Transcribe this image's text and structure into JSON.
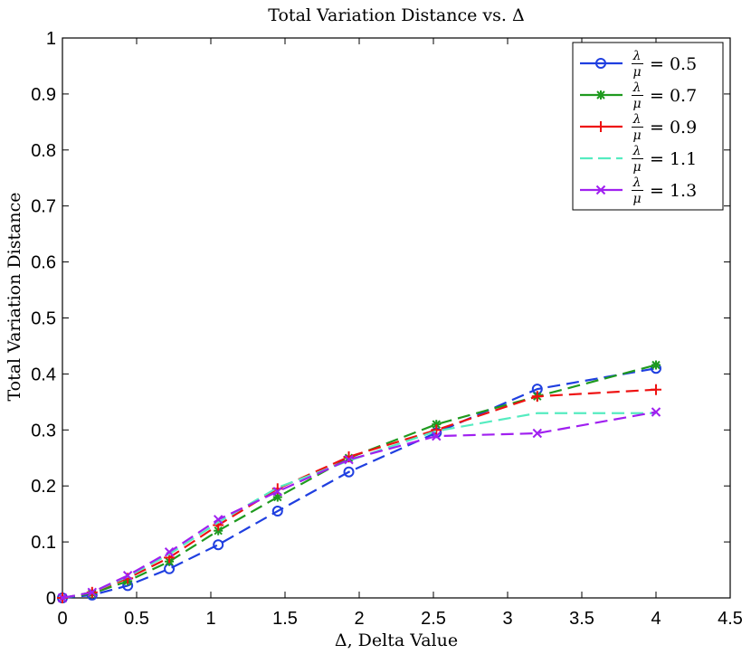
{
  "chart_data": {
    "type": "line",
    "title": "Total Variation Distance vs. Δ",
    "xlabel": "Δ, Delta Value",
    "ylabel": "Total Variation Distance",
    "xlim": [
      0,
      4.5
    ],
    "ylim": [
      0,
      1
    ],
    "xticks": [
      0,
      0.5,
      1,
      1.5,
      2,
      2.5,
      3,
      3.5,
      4,
      4.5
    ],
    "xtick_labels": [
      "0",
      "0.5",
      "1",
      "1.5",
      "2",
      "2.5",
      "3",
      "3.5",
      "4",
      "4.5"
    ],
    "yticks": [
      0,
      0.1,
      0.2,
      0.3,
      0.4,
      0.5,
      0.6,
      0.7,
      0.8,
      0.9,
      1
    ],
    "ytick_labels": [
      "0",
      "0.1",
      "0.2",
      "0.3",
      "0.4",
      "0.5",
      "0.6",
      "0.7",
      "0.8",
      "0.9",
      "1"
    ],
    "grid": false,
    "legend_position": "top-right",
    "x": [
      0,
      0.2,
      0.44,
      0.72,
      1.05,
      1.45,
      1.93,
      2.52,
      3.2,
      4.0
    ],
    "series": [
      {
        "name": "λ/μ = 0.5",
        "ratio": "0.5",
        "color": "#1f3fe0",
        "marker": "circle",
        "values": [
          0,
          0.005,
          0.022,
          0.052,
          0.095,
          0.155,
          0.225,
          0.295,
          0.373,
          0.41
        ]
      },
      {
        "name": "λ/μ = 0.7",
        "ratio": "0.7",
        "color": "#1f9a1f",
        "marker": "asterisk",
        "values": [
          0,
          0.008,
          0.03,
          0.065,
          0.12,
          0.18,
          0.25,
          0.31,
          0.36,
          0.416
        ]
      },
      {
        "name": "λ/μ = 0.9",
        "ratio": "0.9",
        "color": "#ee1111",
        "marker": "plus",
        "values": [
          0,
          0.01,
          0.035,
          0.072,
          0.13,
          0.195,
          0.252,
          0.3,
          0.36,
          0.372
        ]
      },
      {
        "name": "λ/μ = 1.1",
        "ratio": "1.1",
        "color": "#55ecc0",
        "marker": "none",
        "values": [
          0,
          0.01,
          0.038,
          0.078,
          0.135,
          0.197,
          0.245,
          0.298,
          0.33,
          0.33
        ]
      },
      {
        "name": "λ/μ = 1.3",
        "ratio": "1.3",
        "color": "#a020f0",
        "marker": "x",
        "values": [
          0,
          0.01,
          0.04,
          0.082,
          0.14,
          0.19,
          0.247,
          0.289,
          0.294,
          0.332
        ]
      }
    ]
  }
}
